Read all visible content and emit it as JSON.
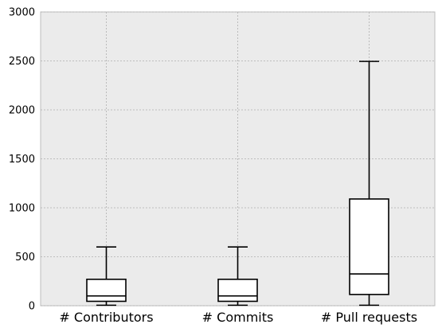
{
  "chart_data": {
    "type": "box",
    "title": "",
    "xlabel": "",
    "ylabel": "",
    "ylim": [
      0,
      3000
    ],
    "yticks": [
      0,
      500,
      1000,
      1500,
      2000,
      2500,
      3000
    ],
    "ytick_labels": [
      "0",
      "500",
      "1000",
      "1500",
      "2000",
      "2500",
      "3000"
    ],
    "grid": true,
    "background": "#ebebeb",
    "categories": [
      "# Contributors",
      "# Commits",
      "# Pull requests"
    ],
    "boxes": [
      {
        "whisker_low": 5,
        "q1": 45,
        "median": 100,
        "q3": 270,
        "whisker_high": 600
      },
      {
        "whisker_low": 5,
        "q1": 45,
        "median": 100,
        "q3": 270,
        "whisker_high": 600
      },
      {
        "whisker_low": 5,
        "q1": 115,
        "median": 325,
        "q3": 1090,
        "whisker_high": 2495
      }
    ]
  }
}
